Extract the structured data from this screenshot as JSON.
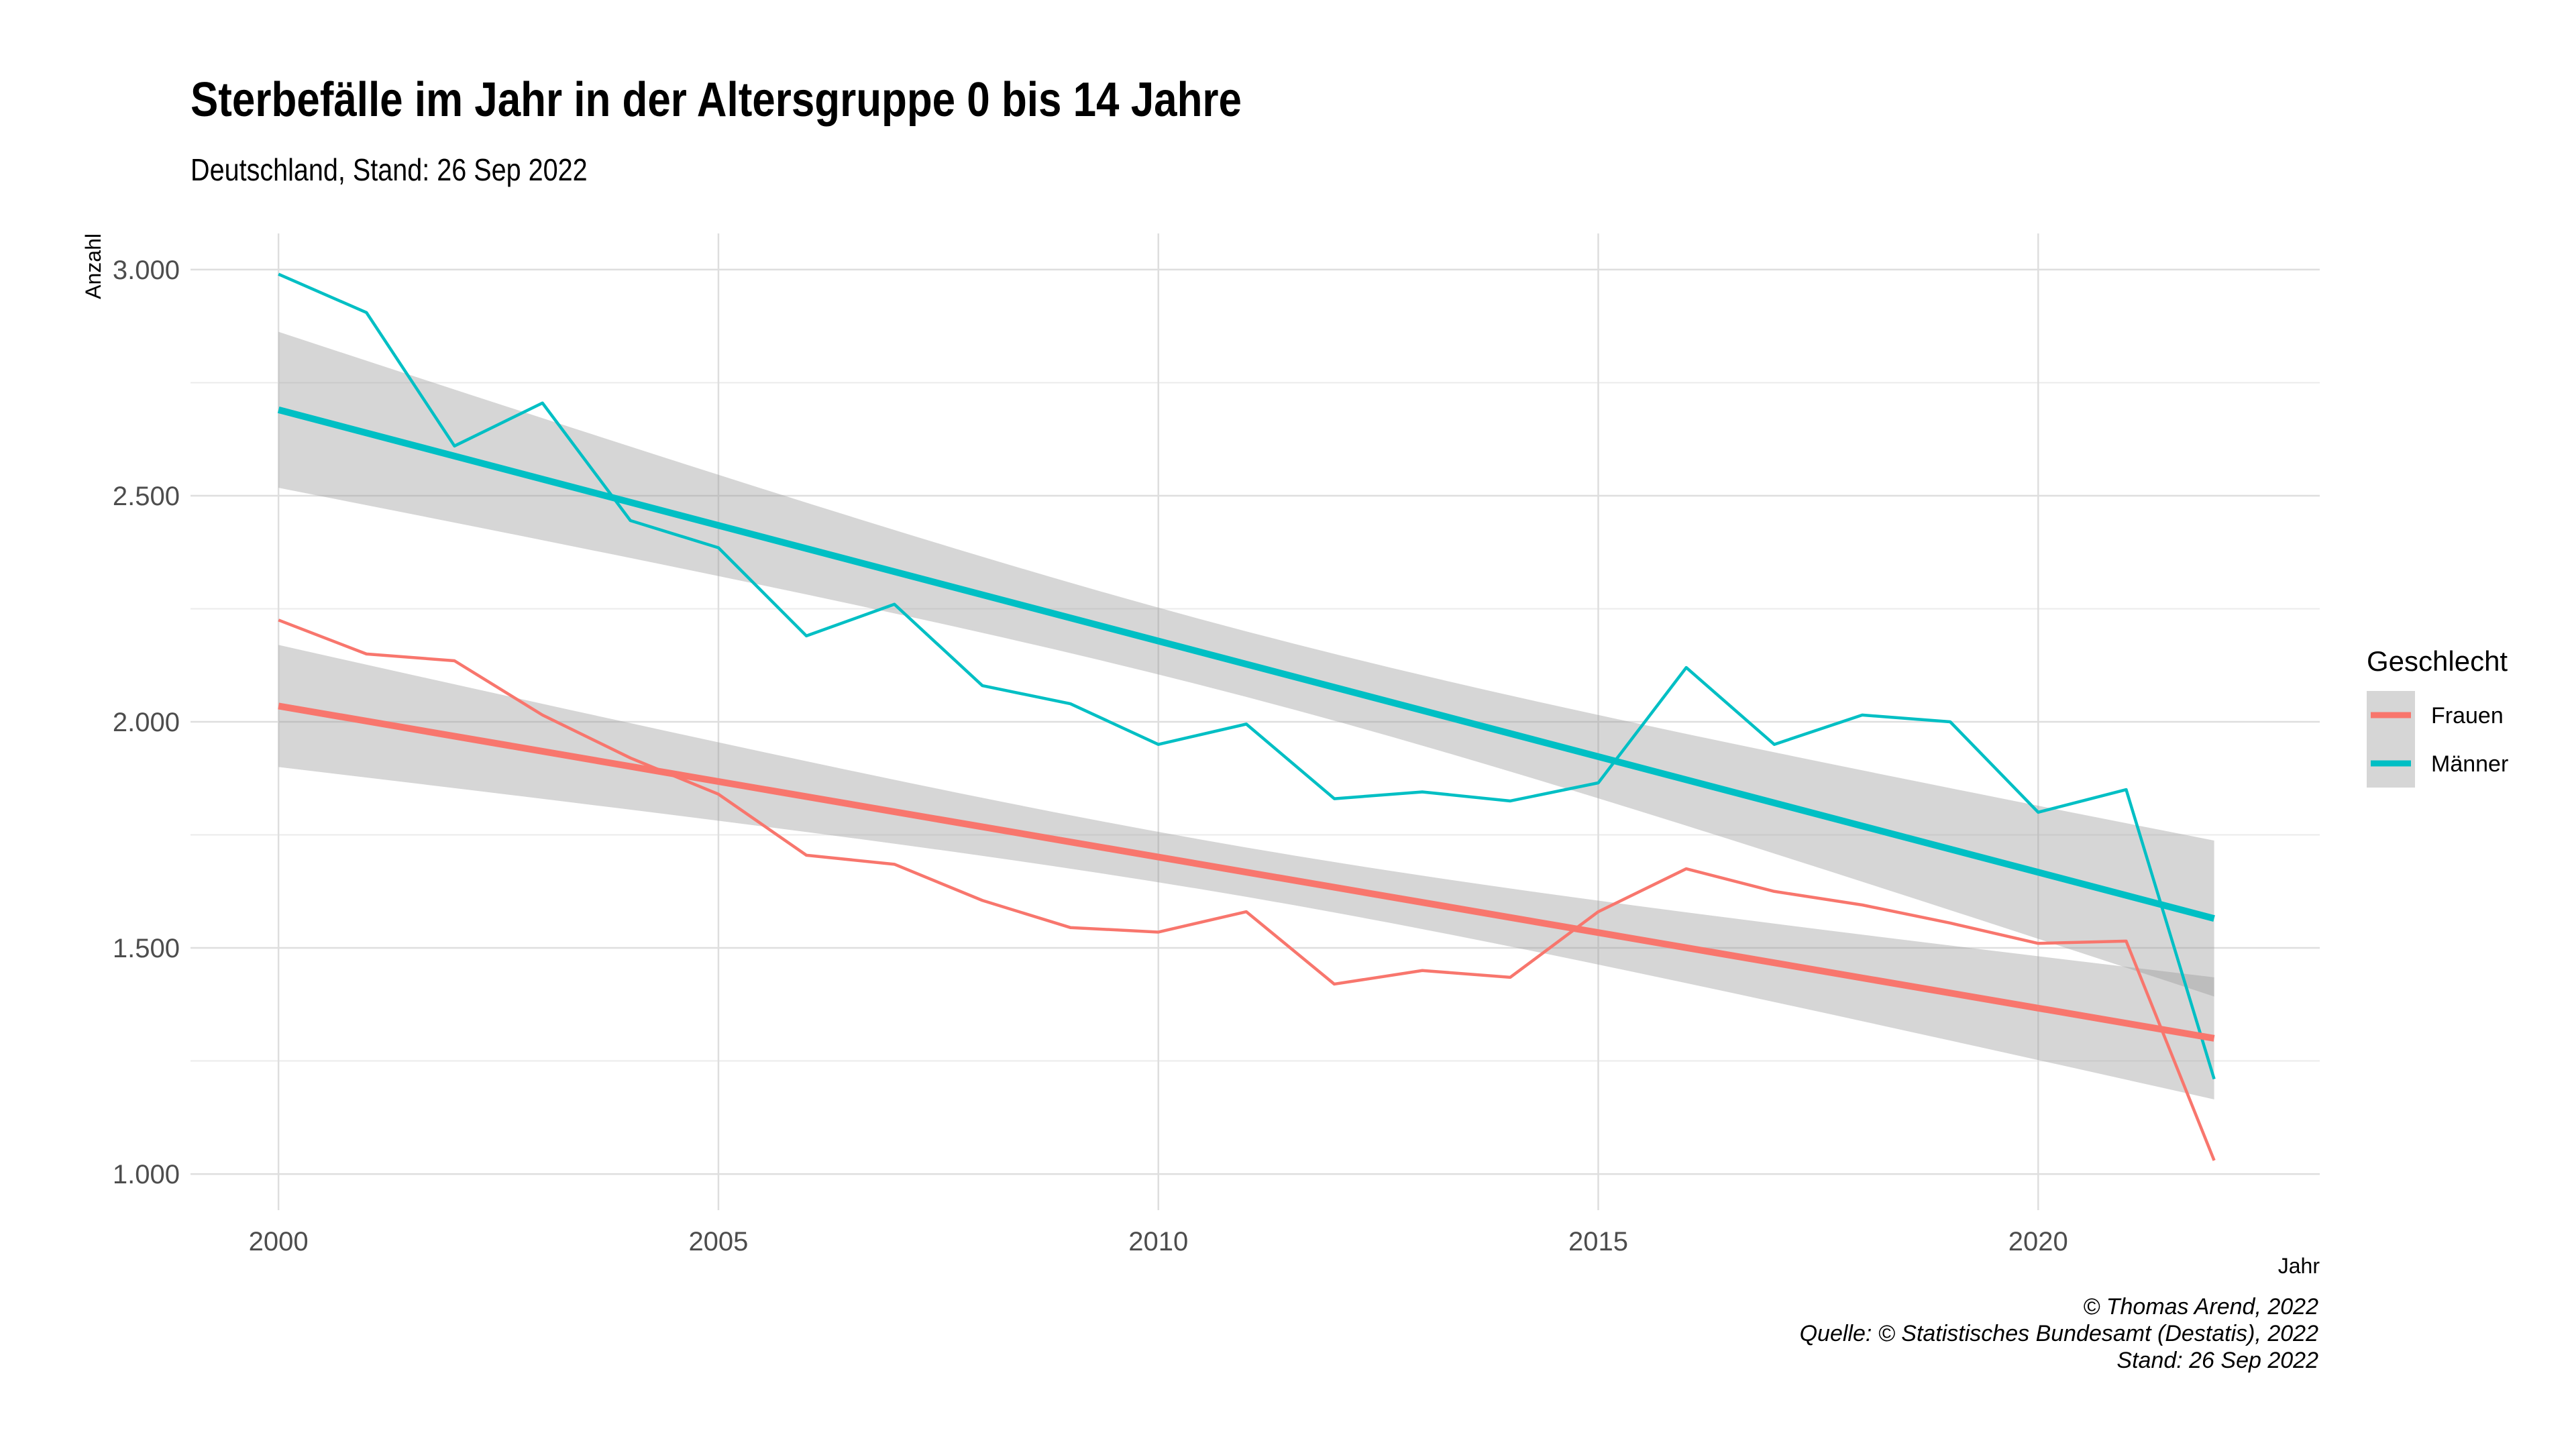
{
  "chart_data": {
    "type": "line",
    "title": "Sterbefälle im Jahr in der Altersgruppe 0 bis 14 Jahre",
    "subtitle": "Deutschland, Stand: 26 Sep 2022",
    "xlabel": "Jahr",
    "ylabel": "Anzahl",
    "xlim": [
      1999,
      2023.2
    ],
    "ylim": [
      920,
      3080
    ],
    "x_ticks": [
      2000,
      2005,
      2010,
      2015,
      2020
    ],
    "x_tick_labels": [
      "2000",
      "2005",
      "2010",
      "2015",
      "2020"
    ],
    "y_ticks": [
      1000,
      1500,
      2000,
      2500,
      3000
    ],
    "y_tick_labels": [
      "1.000",
      "1.500",
      "2.000",
      "2.500",
      "3.000"
    ],
    "grid": true,
    "legend": {
      "title": "Geschlecht",
      "position": "right",
      "entries": [
        "Frauen",
        "Männer"
      ]
    },
    "x": [
      2000,
      2001,
      2002,
      2003,
      2004,
      2005,
      2006,
      2007,
      2008,
      2009,
      2010,
      2011,
      2012,
      2013,
      2014,
      2015,
      2016,
      2017,
      2018,
      2019,
      2020,
      2021,
      2022
    ],
    "series": [
      {
        "name": "Frauen",
        "color": "#F8766D",
        "values": [
          2225,
          2150,
          2135,
          2015,
          1920,
          1840,
          1705,
          1685,
          1605,
          1545,
          1535,
          1580,
          1420,
          1450,
          1435,
          1580,
          1675,
          1625,
          1595,
          1555,
          1510,
          1515,
          1030
        ],
        "trend": {
          "start": 2035,
          "end": 1300,
          "ci_start": [
            1900,
            2170
          ],
          "ci_end": [
            1170,
            1430
          ]
        }
      },
      {
        "name": "Männer",
        "color": "#00BFC4",
        "values": [
          2990,
          2905,
          2610,
          2705,
          2445,
          2385,
          2190,
          2260,
          2080,
          2040,
          1950,
          1995,
          1830,
          1845,
          1825,
          1865,
          2120,
          1950,
          2015,
          2000,
          1800,
          1850,
          1210
        ],
        "trend": {
          "start": 2690,
          "end": 1565,
          "ci_start": [
            2515,
            2860
          ],
          "ci_end": [
            1390,
            1740
          ]
        }
      }
    ],
    "caption": [
      "© Thomas Arend, 2022",
      "Quelle: © Statistisches Bundesamt (Destatis), 2022",
      "Stand: 26 Sep 2022"
    ]
  }
}
